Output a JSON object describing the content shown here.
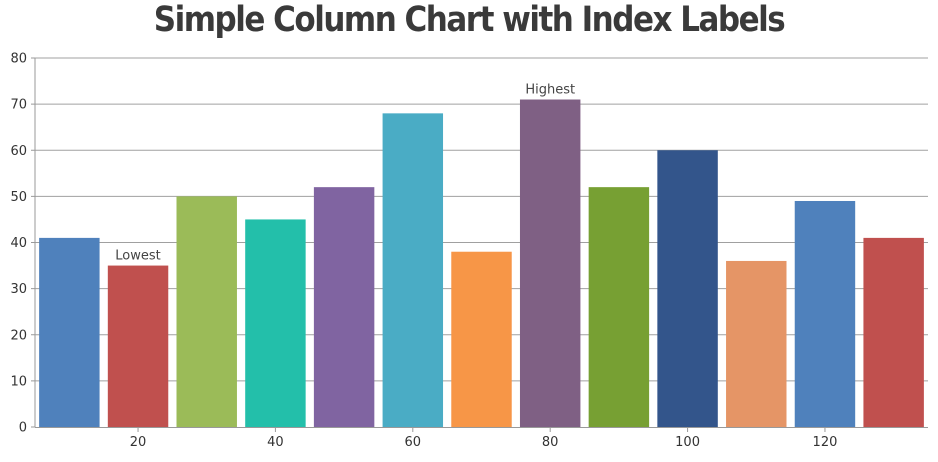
{
  "chart_data": {
    "type": "bar",
    "title": "Simple Column Chart with Index Labels",
    "x": [
      10,
      20,
      30,
      40,
      50,
      60,
      70,
      80,
      90,
      100,
      110,
      120,
      130
    ],
    "values": [
      41,
      35,
      50,
      45,
      52,
      68,
      38,
      71,
      52,
      60,
      36,
      49,
      41
    ],
    "index_labels": [
      null,
      "Lowest",
      null,
      null,
      null,
      null,
      null,
      "Highest",
      null,
      null,
      null,
      null,
      null
    ],
    "colors": [
      "#4f81bc",
      "#c0504e",
      "#9bbb58",
      "#23bfaa",
      "#8064a1",
      "#4aacc5",
      "#f79647",
      "#7f6084",
      "#77a033",
      "#33558b",
      "#e59566",
      "#4f81bc",
      "#c0504e"
    ],
    "xlim": [
      5,
      135
    ],
    "x_ticks": [
      20,
      40,
      60,
      80,
      100,
      120
    ],
    "ylim": [
      0,
      80
    ],
    "y_ticks": [
      0,
      10,
      20,
      30,
      40,
      50,
      60,
      70,
      80
    ],
    "grid": true,
    "xlabel": "",
    "ylabel": ""
  }
}
